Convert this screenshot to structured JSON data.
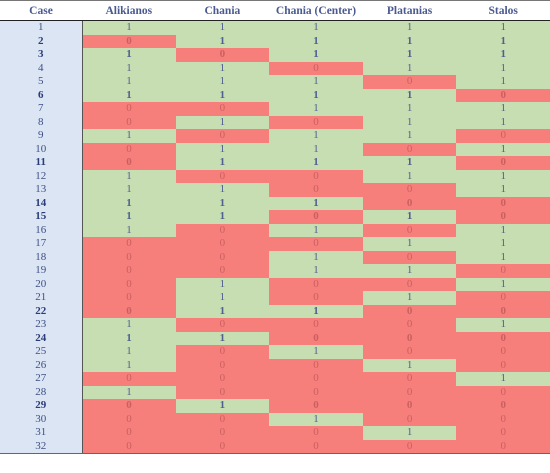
{
  "table": {
    "headers": [
      "Case",
      "Alikianos",
      "Chania",
      "Chania (Center)",
      "Platanias",
      "Stalos"
    ],
    "rows": [
      {
        "case": "1",
        "bold": false,
        "values": [
          "1",
          "1",
          "1",
          "1",
          "1"
        ]
      },
      {
        "case": "2",
        "bold": true,
        "values": [
          "0",
          "1",
          "1",
          "1",
          "1"
        ]
      },
      {
        "case": "3",
        "bold": true,
        "values": [
          "1",
          "0",
          "1",
          "1",
          "1"
        ]
      },
      {
        "case": "4",
        "bold": false,
        "values": [
          "1",
          "1",
          "0",
          "1",
          "1"
        ]
      },
      {
        "case": "5",
        "bold": false,
        "values": [
          "1",
          "1",
          "1",
          "0",
          "1"
        ]
      },
      {
        "case": "6",
        "bold": true,
        "values": [
          "1",
          "1",
          "1",
          "1",
          "0"
        ]
      },
      {
        "case": "7",
        "bold": false,
        "values": [
          "0",
          "0",
          "1",
          "1",
          "1"
        ]
      },
      {
        "case": "8",
        "bold": false,
        "values": [
          "0",
          "1",
          "0",
          "1",
          "1"
        ]
      },
      {
        "case": "9",
        "bold": false,
        "values": [
          "1",
          "0",
          "1",
          "1",
          "0"
        ]
      },
      {
        "case": "10",
        "bold": false,
        "values": [
          "0",
          "1",
          "1",
          "0",
          "1"
        ]
      },
      {
        "case": "11",
        "bold": true,
        "values": [
          "0",
          "1",
          "1",
          "1",
          "0"
        ]
      },
      {
        "case": "12",
        "bold": false,
        "values": [
          "1",
          "0",
          "0",
          "1",
          "1"
        ]
      },
      {
        "case": "13",
        "bold": false,
        "values": [
          "1",
          "1",
          "0",
          "0",
          "1"
        ]
      },
      {
        "case": "14",
        "bold": true,
        "values": [
          "1",
          "1",
          "1",
          "0",
          "0"
        ]
      },
      {
        "case": "15",
        "bold": true,
        "values": [
          "1",
          "1",
          "0",
          "1",
          "0"
        ]
      },
      {
        "case": "16",
        "bold": false,
        "values": [
          "1",
          "0",
          "1",
          "0",
          "1"
        ]
      },
      {
        "case": "17",
        "bold": false,
        "values": [
          "0",
          "0",
          "0",
          "1",
          "1"
        ]
      },
      {
        "case": "18",
        "bold": false,
        "values": [
          "0",
          "0",
          "1",
          "0",
          "1"
        ]
      },
      {
        "case": "19",
        "bold": false,
        "values": [
          "0",
          "0",
          "1",
          "1",
          "0"
        ]
      },
      {
        "case": "20",
        "bold": false,
        "values": [
          "0",
          "1",
          "0",
          "0",
          "1"
        ]
      },
      {
        "case": "21",
        "bold": false,
        "values": [
          "0",
          "1",
          "0",
          "1",
          "0"
        ]
      },
      {
        "case": "22",
        "bold": true,
        "values": [
          "0",
          "1",
          "1",
          "0",
          "0"
        ]
      },
      {
        "case": "23",
        "bold": false,
        "values": [
          "1",
          "0",
          "0",
          "0",
          "1"
        ]
      },
      {
        "case": "24",
        "bold": true,
        "values": [
          "1",
          "1",
          "0",
          "0",
          "0"
        ]
      },
      {
        "case": "25",
        "bold": false,
        "values": [
          "1",
          "0",
          "1",
          "0",
          "0"
        ]
      },
      {
        "case": "26",
        "bold": false,
        "values": [
          "1",
          "0",
          "0",
          "1",
          "0"
        ]
      },
      {
        "case": "27",
        "bold": false,
        "values": [
          "0",
          "0",
          "0",
          "0",
          "1"
        ]
      },
      {
        "case": "28",
        "bold": false,
        "values": [
          "1",
          "0",
          "0",
          "0",
          "0"
        ]
      },
      {
        "case": "29",
        "bold": true,
        "values": [
          "0",
          "1",
          "0",
          "0",
          "0"
        ]
      },
      {
        "case": "30",
        "bold": false,
        "values": [
          "0",
          "0",
          "1",
          "0",
          "0"
        ]
      },
      {
        "case": "31",
        "bold": false,
        "values": [
          "0",
          "0",
          "0",
          "1",
          "0"
        ]
      },
      {
        "case": "32",
        "bold": false,
        "values": [
          "0",
          "0",
          "0",
          "0",
          "0"
        ]
      }
    ]
  },
  "colors": {
    "on": "#c7ddb2",
    "off": "#f77f7b",
    "case_column": "#dbe5f3"
  }
}
